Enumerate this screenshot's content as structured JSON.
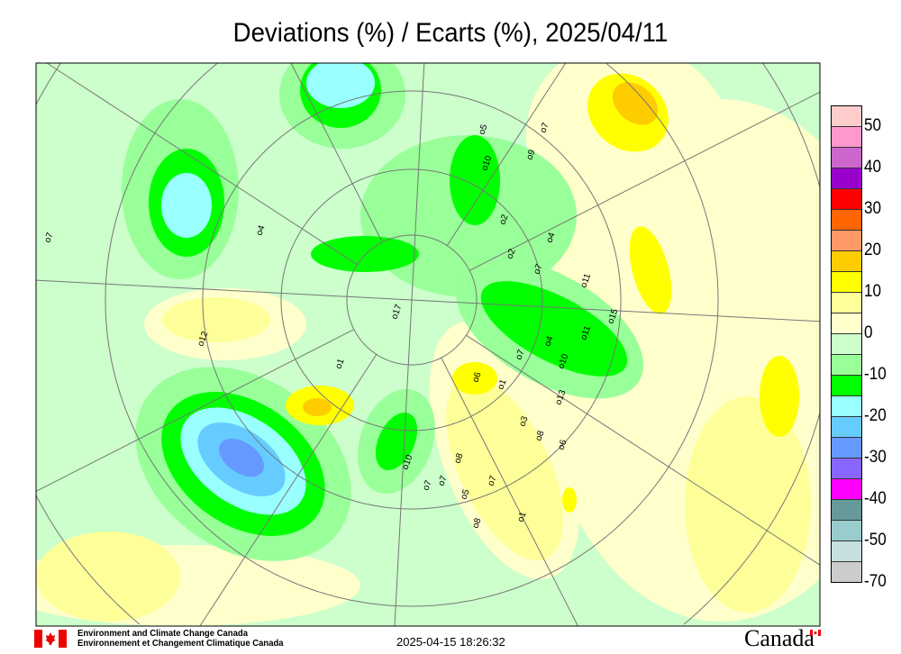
{
  "title": "Deviations (%) / Ecarts (%), 2025/04/11",
  "legend": {
    "colors": [
      "#ffcccc",
      "#ff99cc",
      "#cc66cc",
      "#9900cc",
      "#ff0000",
      "#ff6600",
      "#ff9966",
      "#ffcc00",
      "#ffff00",
      "#ffff99",
      "#ffffcc",
      "#ccffcc",
      "#99ff99",
      "#00ff00",
      "#99ffff",
      "#66ccff",
      "#6699ff",
      "#8866ff",
      "#ff00ff",
      "#669999",
      "#99cccc",
      "#c6e0e0",
      "#cccccc"
    ],
    "labels": [
      "50",
      "40",
      "30",
      "20",
      "10",
      "0",
      "-10",
      "-20",
      "-30",
      "-40",
      "-50",
      "-70"
    ]
  },
  "map": {
    "projection": "polar stereographic (north pole)",
    "field": "precipitation deviation (%)",
    "station_values": [
      "7",
      "4",
      "5",
      "7",
      "9",
      "10",
      "4",
      "2",
      "7",
      "11",
      "15",
      "11",
      "4",
      "10",
      "13",
      "17",
      "1",
      "6",
      "1",
      "7",
      "3",
      "8",
      "6",
      "10",
      "7",
      "7",
      "5",
      "8",
      "7",
      "8",
      "1",
      "2",
      "12"
    ]
  },
  "footer": {
    "org_en": "Environment and Climate Change Canada",
    "org_fr": "Environnement et Changement Climatique Canada",
    "timestamp": "2025-04-15 18:26:32",
    "wordmark": "Canada"
  }
}
